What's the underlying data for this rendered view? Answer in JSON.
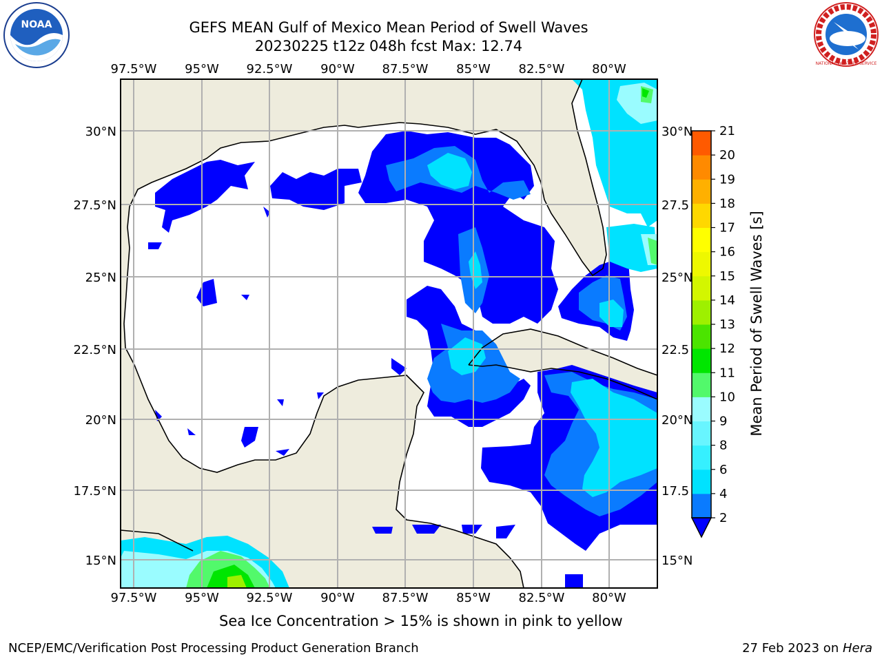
{
  "title_line1": "GEFS MEAN Gulf of Mexico Mean Period of Swell Waves",
  "title_line2": "20230225 t12z 048h fcst   Max: 12.74",
  "top_lon_labels": [
    "97.5°W",
    "95°W",
    "92.5°W",
    "90°W",
    "87.5°W",
    "85°W",
    "82.5°W",
    "80°W"
  ],
  "bottom_lon_labels": [
    "97.5°W",
    "95°W",
    "92.5°W",
    "90°W",
    "87.5°W",
    "85°W",
    "82.5°W",
    "80°W"
  ],
  "left_lat_labels": [
    "30°N",
    "27.5°N",
    "25°N",
    "22.5°N",
    "20°N",
    "17.5°N",
    "15°N"
  ],
  "right_lat_labels": [
    "30°N",
    "27.5",
    "25°N",
    "22.5",
    "20°N",
    "17.5",
    "15°N"
  ],
  "colorbar": {
    "label": "Mean Period of Swell Waves [s]",
    "ticks": [
      "2",
      "4",
      "6",
      "8",
      "9",
      "10",
      "11",
      "12",
      "13",
      "14",
      "15",
      "16",
      "17",
      "18",
      "19",
      "20",
      "21"
    ],
    "colors": [
      "#0a7bff",
      "#00e2ff",
      "#36f0ff",
      "#68f5ff",
      "#9afcff",
      "#52f96b",
      "#00e600",
      "#4be400",
      "#9ef000",
      "#d3f600",
      "#eef800",
      "#ffff00",
      "#ffd800",
      "#ffb000",
      "#ff8a00",
      "#ff5a00",
      "#ff2a00",
      "#ff0000"
    ],
    "extend_color": "#0000ff"
  },
  "note": "Sea Ice Concentration > 15% is shown in pink to yellow",
  "footer_left": "NCEP/EMC/Verification Post Processing Product Generation Branch",
  "footer_date": "27 Feb 2023 on ",
  "footer_machine": "Hera",
  "colors": {
    "land": "#eeecdd",
    "water": "#ffffff",
    "grid": "#b0b0b0",
    "coast": "#000000"
  },
  "logos": {
    "left": "NOAA",
    "right": "NATIONAL WEATHER SERVICE"
  }
}
